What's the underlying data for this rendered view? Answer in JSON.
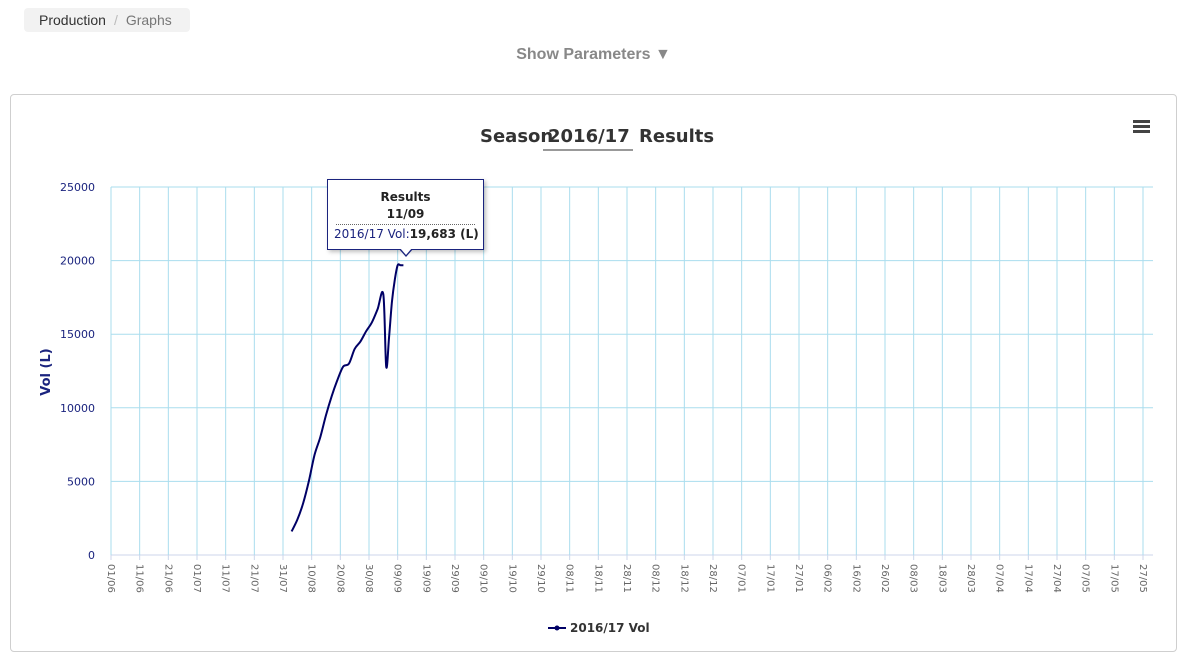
{
  "breadcrumb": {
    "items": [
      "Production",
      "Graphs"
    ]
  },
  "parameters": {
    "toggle_label": "Show Parameters ▼"
  },
  "chart_menu": {
    "icon": "hamburger-menu-icon"
  },
  "colors": {
    "series": "#000066",
    "grid": "#aaddee",
    "axis_text": "#666666",
    "ylabel": "#1a237e"
  },
  "chart_data": {
    "type": "line",
    "title_prefix": "Season",
    "title_season": "2016/17",
    "title_suffix": "Results",
    "ylabel": "Vol (L)",
    "xlabel": "",
    "ylim": [
      0,
      25000
    ],
    "yticks": [
      0,
      5000,
      10000,
      15000,
      20000,
      25000
    ],
    "xticks": [
      "01/06",
      "11/06",
      "21/06",
      "01/07",
      "11/07",
      "21/07",
      "31/07",
      "10/08",
      "20/08",
      "30/08",
      "09/09",
      "19/09",
      "29/09",
      "09/10",
      "19/10",
      "29/10",
      "08/11",
      "18/11",
      "28/11",
      "08/12",
      "18/12",
      "28/12",
      "07/01",
      "17/01",
      "27/01",
      "06/02",
      "16/02",
      "26/02",
      "08/03",
      "18/03",
      "28/03",
      "07/04",
      "17/04",
      "27/04",
      "07/05",
      "17/05",
      "27/05"
    ],
    "grid": true,
    "legend": "bottom-center",
    "series": [
      {
        "name": "2016/17 Vol",
        "x": [
          "03/08",
          "05/08",
          "07/08",
          "09/08",
          "11/08",
          "13/08",
          "15/08",
          "17/08",
          "19/08",
          "21/08",
          "23/08",
          "25/08",
          "27/08",
          "29/08",
          "31/08",
          "02/09",
          "04/09",
          "05/09",
          "06/09",
          "07/09",
          "08/09",
          "09/09",
          "10/09",
          "11/09"
        ],
        "values": [
          1600,
          2400,
          3500,
          5000,
          6800,
          8000,
          9500,
          10800,
          11900,
          12800,
          13000,
          14000,
          14500,
          15200,
          15800,
          16700,
          17700,
          12800,
          14800,
          17200,
          18700,
          19683,
          19683,
          19683
        ]
      }
    ],
    "tooltip": {
      "title": "Results",
      "date": "11/09",
      "series_label": "2016/17 Vol:",
      "value": "19,683 (L)"
    }
  }
}
